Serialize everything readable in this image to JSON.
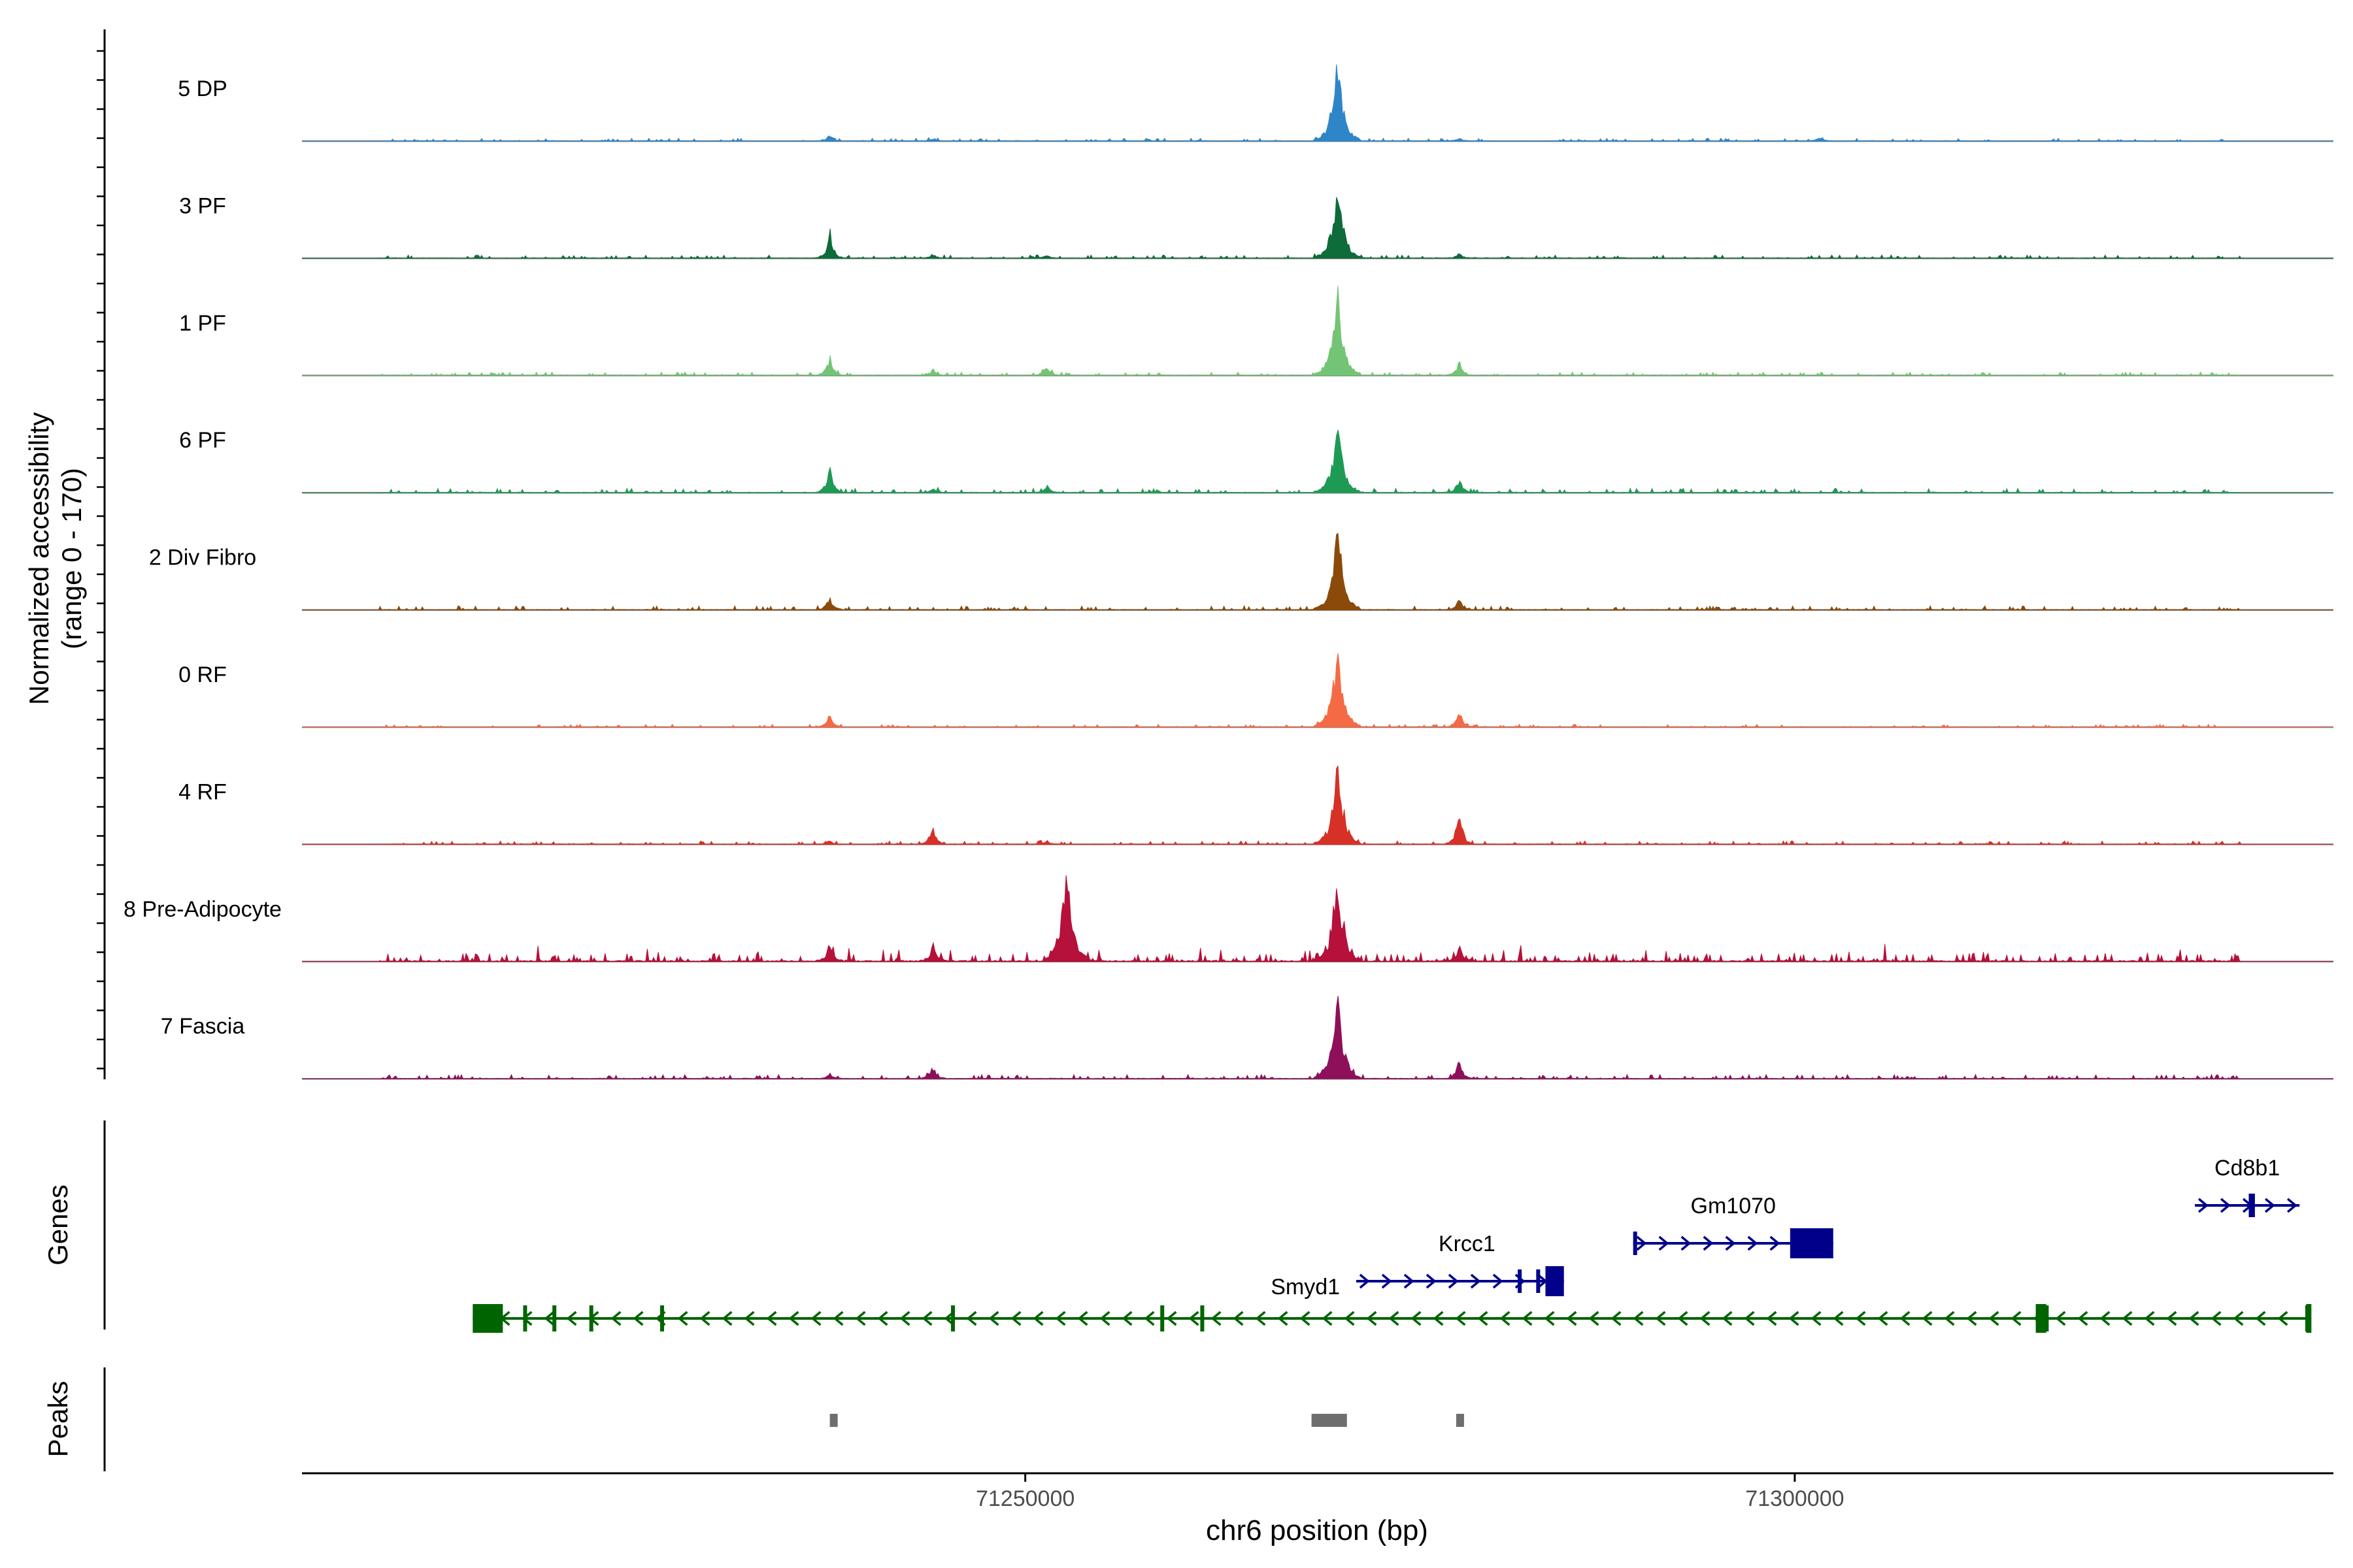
{
  "chart_data": {
    "type": "area",
    "title": "",
    "ylabel": "Normalized accessibility",
    "ylabel_range": "(range 0 - 170)",
    "yrange": [
      0,
      170
    ],
    "xlabel": "chr6 position (bp)",
    "xlim": [
      71203000,
      71335000
    ],
    "x_ticks": [
      {
        "value": 71250000,
        "label": "71250000"
      },
      {
        "value": 71300000,
        "label": "71300000"
      }
    ],
    "tracks": [
      {
        "name": "5 DP",
        "color": "#2e86c8",
        "peaks": [
          [
            71237300,
            12
          ],
          [
            71244000,
            4
          ],
          [
            71270300,
            168
          ],
          [
            71278200,
            6
          ],
          [
            71301600,
            8
          ]
        ],
        "noise": 2.2
      },
      {
        "name": "3 PF",
        "color": "#0e6b3a",
        "peaks": [
          [
            71237300,
            55
          ],
          [
            71244000,
            7
          ],
          [
            71251400,
            6
          ],
          [
            71270300,
            160
          ],
          [
            71278200,
            10
          ]
        ],
        "noise": 2.6
      },
      {
        "name": "1 PF",
        "color": "#74c476",
        "peaks": [
          [
            71237300,
            40
          ],
          [
            71244000,
            12
          ],
          [
            71251400,
            20
          ],
          [
            71270300,
            170
          ],
          [
            71278200,
            28
          ]
        ],
        "noise": 2.6
      },
      {
        "name": "6 PF",
        "color": "#1f9a55",
        "peaks": [
          [
            71237300,
            55
          ],
          [
            71244000,
            8
          ],
          [
            71251400,
            15
          ],
          [
            71270300,
            140
          ],
          [
            71278200,
            30
          ]
        ],
        "noise": 3.4
      },
      {
        "name": "2 Div Fibro",
        "color": "#8b4a0a",
        "peaks": [
          [
            71237300,
            28
          ],
          [
            71270300,
            170
          ],
          [
            71278200,
            22
          ]
        ],
        "noise": 3.2
      },
      {
        "name": "0 RF",
        "color": "#f46a45",
        "peaks": [
          [
            71237300,
            28
          ],
          [
            71270300,
            170
          ],
          [
            71278200,
            35
          ]
        ],
        "noise": 2.2
      },
      {
        "name": "4 RF",
        "color": "#d73027",
        "peaks": [
          [
            71237300,
            8
          ],
          [
            71244000,
            35
          ],
          [
            71251400,
            8
          ],
          [
            71270300,
            170
          ],
          [
            71278200,
            75
          ]
        ],
        "noise": 2.6
      },
      {
        "name": "8 Pre-Adipocyte",
        "color": "#b5113a",
        "peaks": [
          [
            71237300,
            40
          ],
          [
            71244000,
            35
          ],
          [
            71252700,
            200
          ],
          [
            71270300,
            170
          ],
          [
            71278200,
            30
          ]
        ],
        "noise": 6.5
      },
      {
        "name": "7 Fascia",
        "color": "#8e0f5a",
        "peaks": [
          [
            71237300,
            10
          ],
          [
            71244000,
            25
          ],
          [
            71270300,
            170
          ],
          [
            71278200,
            38
          ]
        ],
        "noise": 3.2
      }
    ],
    "genes_label": "Genes",
    "genes": [
      {
        "name": "Cd8b1",
        "start": 71326000,
        "end": 71332800,
        "strand": "+",
        "row": 0,
        "color": "#00008b",
        "exons": [
          [
            71329500,
            71329900
          ]
        ]
      },
      {
        "name": "Gm1070",
        "start": 71289500,
        "end": 71302500,
        "strand": "+",
        "row": 1,
        "color": "#00008b",
        "exons": [
          [
            71289500,
            71289700
          ],
          [
            71299700,
            71302500
          ]
        ]
      },
      {
        "name": "Krcc1",
        "start": 71271500,
        "end": 71285000,
        "strand": "+",
        "row": 2,
        "color": "#00008b",
        "label_pos": 71278700,
        "exons": [
          [
            71282000,
            71282100
          ],
          [
            71283200,
            71283300
          ],
          [
            71283800,
            71285000
          ]
        ]
      },
      {
        "name": "Smyd1",
        "start": 71214100,
        "end": 71333500,
        "strand": "-",
        "row": 3,
        "color": "#006400",
        "label_pos": 71268200,
        "label_row": 2,
        "exons": [
          [
            71214100,
            71316000
          ],
          [
            71217500,
            71217700
          ],
          [
            71219400,
            71219600
          ],
          [
            71221800,
            71222000
          ],
          [
            71226400,
            71226600
          ],
          [
            71245300,
            71245500
          ],
          [
            71258900,
            71259100
          ],
          [
            71261500,
            71261700
          ],
          [
            71316000,
            71316600
          ],
          [
            71333300,
            71333500
          ]
        ],
        "big_exons": [
          [
            71214100,
            71216000
          ],
          [
            71315900,
            71316500
          ]
        ]
      }
    ],
    "peaks_label": "Peaks",
    "peak_regions": [
      [
        71237300,
        71237700
      ],
      [
        71268600,
        71270900
      ],
      [
        71278000,
        71278500
      ]
    ]
  }
}
